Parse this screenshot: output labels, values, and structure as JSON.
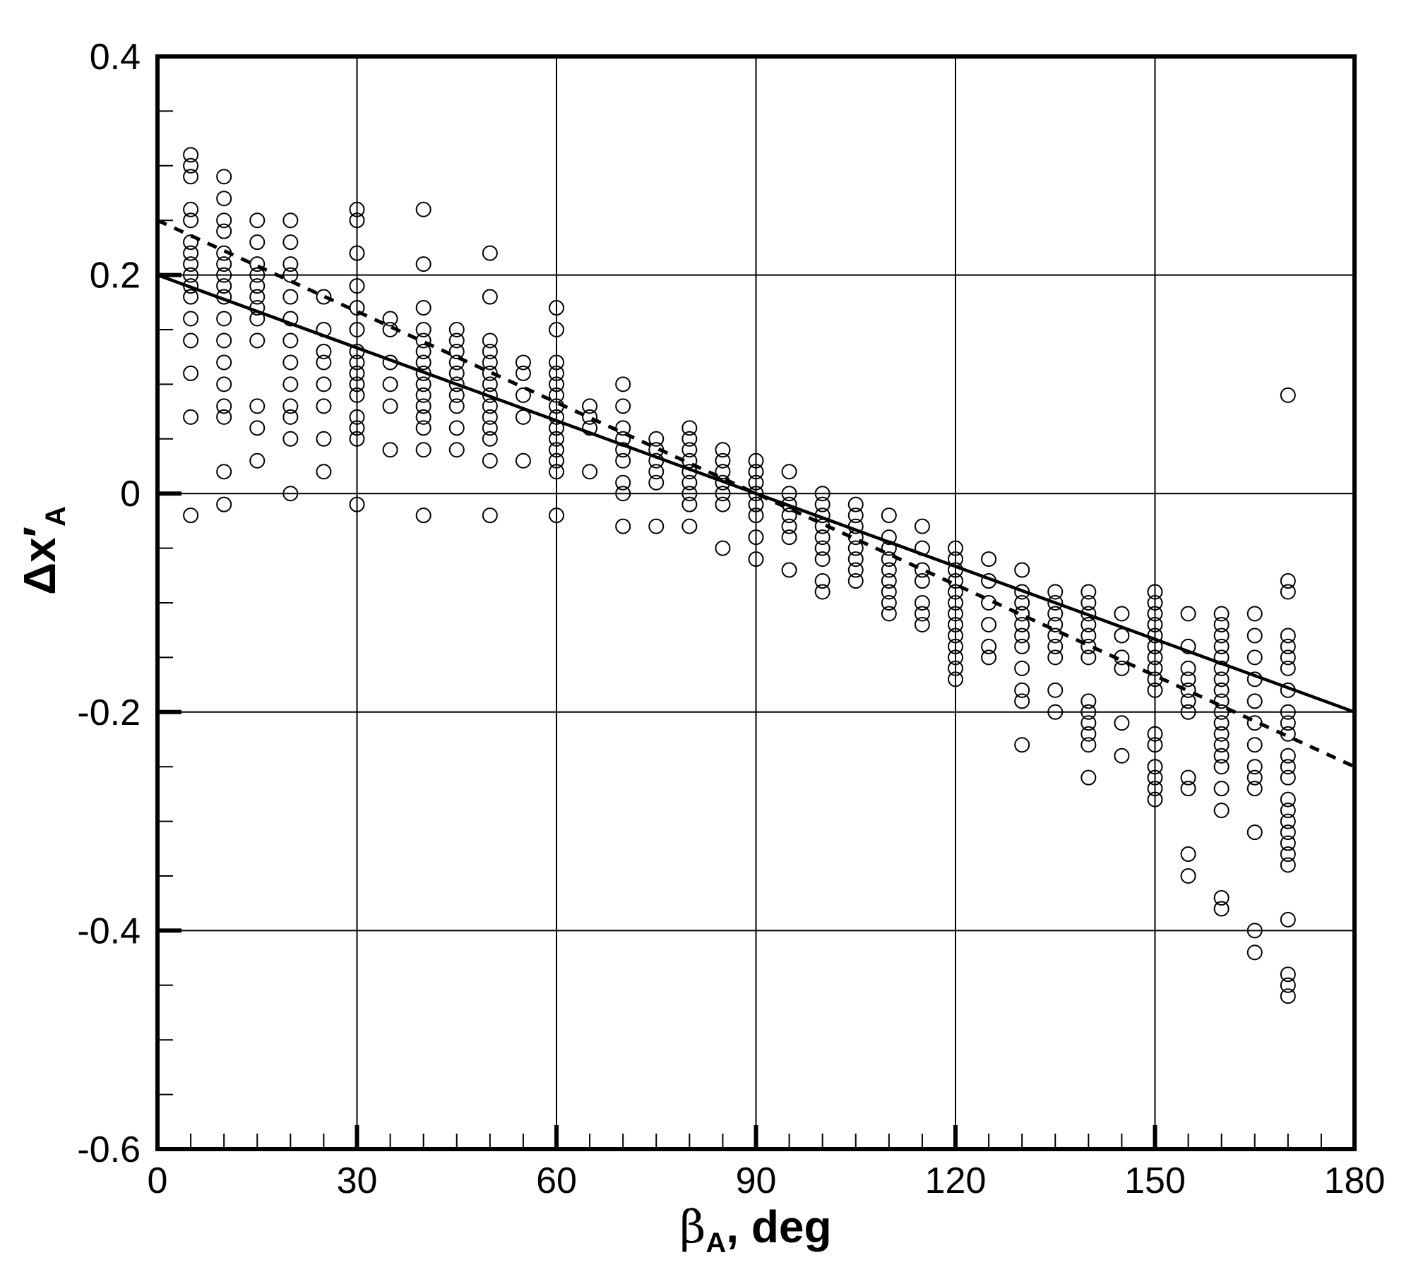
{
  "chart_data": {
    "type": "scatter",
    "title": "",
    "xlabel": {
      "symbol": "β",
      "subscript": "A",
      "suffix": ", deg"
    },
    "ylabel": {
      "prefix": "Δx′",
      "subscript": "A"
    },
    "xlim": [
      0,
      180
    ],
    "ylim": [
      -0.6,
      0.4
    ],
    "xticks": [
      0,
      30,
      60,
      90,
      120,
      150,
      180
    ],
    "xtick_labels": [
      "0",
      "30",
      "60",
      "90",
      "120",
      "150",
      "180"
    ],
    "yticks": [
      -0.6,
      -0.4,
      -0.2,
      0,
      0.2,
      0.4
    ],
    "ytick_labels": [
      "-0.6",
      "-0.4",
      "-0.2",
      "0",
      "0.2",
      "0.4"
    ],
    "grid": true,
    "lines": [
      {
        "style": "solid",
        "x": [
          0,
          180
        ],
        "y": [
          0.2,
          -0.2
        ]
      },
      {
        "style": "dashed",
        "x": [
          0,
          180
        ],
        "y": [
          0.25,
          -0.25
        ]
      }
    ],
    "points": [
      [
        5,
        0.31
      ],
      [
        5,
        0.3
      ],
      [
        5,
        0.29
      ],
      [
        5,
        0.26
      ],
      [
        5,
        0.25
      ],
      [
        5,
        0.23
      ],
      [
        5,
        0.22
      ],
      [
        5,
        0.21
      ],
      [
        5,
        0.2
      ],
      [
        5,
        0.19
      ],
      [
        5,
        0.18
      ],
      [
        5,
        0.16
      ],
      [
        5,
        0.14
      ],
      [
        5,
        0.11
      ],
      [
        5,
        0.07
      ],
      [
        5,
        -0.02
      ],
      [
        10,
        0.29
      ],
      [
        10,
        0.27
      ],
      [
        10,
        0.25
      ],
      [
        10,
        0.24
      ],
      [
        10,
        0.22
      ],
      [
        10,
        0.21
      ],
      [
        10,
        0.2
      ],
      [
        10,
        0.19
      ],
      [
        10,
        0.18
      ],
      [
        10,
        0.16
      ],
      [
        10,
        0.14
      ],
      [
        10,
        0.12
      ],
      [
        10,
        0.1
      ],
      [
        10,
        0.08
      ],
      [
        10,
        0.07
      ],
      [
        10,
        0.02
      ],
      [
        10,
        -0.01
      ],
      [
        15,
        0.25
      ],
      [
        15,
        0.23
      ],
      [
        15,
        0.21
      ],
      [
        15,
        0.2
      ],
      [
        15,
        0.19
      ],
      [
        15,
        0.18
      ],
      [
        15,
        0.17
      ],
      [
        15,
        0.16
      ],
      [
        15,
        0.14
      ],
      [
        15,
        0.08
      ],
      [
        15,
        0.06
      ],
      [
        15,
        0.03
      ],
      [
        20,
        0.25
      ],
      [
        20,
        0.23
      ],
      [
        20,
        0.21
      ],
      [
        20,
        0.2
      ],
      [
        20,
        0.18
      ],
      [
        20,
        0.16
      ],
      [
        20,
        0.14
      ],
      [
        20,
        0.12
      ],
      [
        20,
        0.1
      ],
      [
        20,
        0.08
      ],
      [
        20,
        0.07
      ],
      [
        20,
        0.05
      ],
      [
        20,
        0.0
      ],
      [
        25,
        0.18
      ],
      [
        25,
        0.15
      ],
      [
        25,
        0.13
      ],
      [
        25,
        0.12
      ],
      [
        25,
        0.1
      ],
      [
        25,
        0.08
      ],
      [
        25,
        0.05
      ],
      [
        25,
        0.02
      ],
      [
        30,
        0.26
      ],
      [
        30,
        0.25
      ],
      [
        30,
        0.22
      ],
      [
        30,
        0.19
      ],
      [
        30,
        0.17
      ],
      [
        30,
        0.15
      ],
      [
        30,
        0.13
      ],
      [
        30,
        0.12
      ],
      [
        30,
        0.11
      ],
      [
        30,
        0.1
      ],
      [
        30,
        0.09
      ],
      [
        30,
        0.07
      ],
      [
        30,
        0.06
      ],
      [
        30,
        0.05
      ],
      [
        30,
        -0.01
      ],
      [
        35,
        0.16
      ],
      [
        35,
        0.15
      ],
      [
        35,
        0.12
      ],
      [
        35,
        0.1
      ],
      [
        35,
        0.08
      ],
      [
        35,
        0.04
      ],
      [
        40,
        0.26
      ],
      [
        40,
        0.21
      ],
      [
        40,
        0.17
      ],
      [
        40,
        0.15
      ],
      [
        40,
        0.14
      ],
      [
        40,
        0.13
      ],
      [
        40,
        0.12
      ],
      [
        40,
        0.11
      ],
      [
        40,
        0.1
      ],
      [
        40,
        0.09
      ],
      [
        40,
        0.08
      ],
      [
        40,
        0.07
      ],
      [
        40,
        0.06
      ],
      [
        40,
        0.04
      ],
      [
        40,
        -0.02
      ],
      [
        45,
        0.15
      ],
      [
        45,
        0.14
      ],
      [
        45,
        0.13
      ],
      [
        45,
        0.12
      ],
      [
        45,
        0.11
      ],
      [
        45,
        0.1
      ],
      [
        45,
        0.09
      ],
      [
        45,
        0.08
      ],
      [
        45,
        0.06
      ],
      [
        45,
        0.04
      ],
      [
        50,
        0.22
      ],
      [
        50,
        0.18
      ],
      [
        50,
        0.14
      ],
      [
        50,
        0.13
      ],
      [
        50,
        0.12
      ],
      [
        50,
        0.11
      ],
      [
        50,
        0.1
      ],
      [
        50,
        0.09
      ],
      [
        50,
        0.08
      ],
      [
        50,
        0.07
      ],
      [
        50,
        0.06
      ],
      [
        50,
        0.05
      ],
      [
        50,
        0.03
      ],
      [
        50,
        -0.02
      ],
      [
        55,
        0.12
      ],
      [
        55,
        0.11
      ],
      [
        55,
        0.09
      ],
      [
        55,
        0.07
      ],
      [
        55,
        0.03
      ],
      [
        60,
        0.17
      ],
      [
        60,
        0.15
      ],
      [
        60,
        0.12
      ],
      [
        60,
        0.11
      ],
      [
        60,
        0.1
      ],
      [
        60,
        0.09
      ],
      [
        60,
        0.08
      ],
      [
        60,
        0.07
      ],
      [
        60,
        0.06
      ],
      [
        60,
        0.05
      ],
      [
        60,
        0.04
      ],
      [
        60,
        0.03
      ],
      [
        60,
        0.02
      ],
      [
        60,
        -0.02
      ],
      [
        65,
        0.08
      ],
      [
        65,
        0.07
      ],
      [
        65,
        0.06
      ],
      [
        65,
        0.02
      ],
      [
        70,
        0.1
      ],
      [
        70,
        0.08
      ],
      [
        70,
        0.06
      ],
      [
        70,
        0.05
      ],
      [
        70,
        0.04
      ],
      [
        70,
        0.03
      ],
      [
        70,
        0.01
      ],
      [
        70,
        0.0
      ],
      [
        70,
        -0.03
      ],
      [
        75,
        0.05
      ],
      [
        75,
        0.04
      ],
      [
        75,
        0.03
      ],
      [
        75,
        0.02
      ],
      [
        75,
        0.01
      ],
      [
        75,
        -0.03
      ],
      [
        80,
        0.06
      ],
      [
        80,
        0.05
      ],
      [
        80,
        0.04
      ],
      [
        80,
        0.03
      ],
      [
        80,
        0.02
      ],
      [
        80,
        0.01
      ],
      [
        80,
        0.0
      ],
      [
        80,
        -0.01
      ],
      [
        80,
        -0.03
      ],
      [
        85,
        0.04
      ],
      [
        85,
        0.03
      ],
      [
        85,
        0.02
      ],
      [
        85,
        0.01
      ],
      [
        85,
        0.0
      ],
      [
        85,
        -0.01
      ],
      [
        85,
        -0.05
      ],
      [
        90,
        0.03
      ],
      [
        90,
        0.02
      ],
      [
        90,
        0.01
      ],
      [
        90,
        0.0
      ],
      [
        90,
        -0.01
      ],
      [
        90,
        -0.02
      ],
      [
        90,
        -0.04
      ],
      [
        90,
        -0.06
      ],
      [
        95,
        0.02
      ],
      [
        95,
        0.0
      ],
      [
        95,
        -0.01
      ],
      [
        95,
        -0.02
      ],
      [
        95,
        -0.03
      ],
      [
        95,
        -0.04
      ],
      [
        95,
        -0.07
      ],
      [
        100,
        0.0
      ],
      [
        100,
        -0.01
      ],
      [
        100,
        -0.02
      ],
      [
        100,
        -0.03
      ],
      [
        100,
        -0.04
      ],
      [
        100,
        -0.05
      ],
      [
        100,
        -0.06
      ],
      [
        100,
        -0.08
      ],
      [
        100,
        -0.09
      ],
      [
        105,
        -0.01
      ],
      [
        105,
        -0.02
      ],
      [
        105,
        -0.03
      ],
      [
        105,
        -0.04
      ],
      [
        105,
        -0.05
      ],
      [
        105,
        -0.06
      ],
      [
        105,
        -0.07
      ],
      [
        105,
        -0.08
      ],
      [
        110,
        -0.02
      ],
      [
        110,
        -0.04
      ],
      [
        110,
        -0.05
      ],
      [
        110,
        -0.06
      ],
      [
        110,
        -0.07
      ],
      [
        110,
        -0.08
      ],
      [
        110,
        -0.09
      ],
      [
        110,
        -0.1
      ],
      [
        110,
        -0.11
      ],
      [
        115,
        -0.03
      ],
      [
        115,
        -0.05
      ],
      [
        115,
        -0.07
      ],
      [
        115,
        -0.08
      ],
      [
        115,
        -0.1
      ],
      [
        115,
        -0.11
      ],
      [
        115,
        -0.12
      ],
      [
        120,
        -0.05
      ],
      [
        120,
        -0.06
      ],
      [
        120,
        -0.07
      ],
      [
        120,
        -0.08
      ],
      [
        120,
        -0.09
      ],
      [
        120,
        -0.1
      ],
      [
        120,
        -0.11
      ],
      [
        120,
        -0.12
      ],
      [
        120,
        -0.13
      ],
      [
        120,
        -0.14
      ],
      [
        120,
        -0.15
      ],
      [
        120,
        -0.16
      ],
      [
        120,
        -0.17
      ],
      [
        125,
        -0.06
      ],
      [
        125,
        -0.08
      ],
      [
        125,
        -0.1
      ],
      [
        125,
        -0.12
      ],
      [
        125,
        -0.14
      ],
      [
        125,
        -0.15
      ],
      [
        130,
        -0.07
      ],
      [
        130,
        -0.09
      ],
      [
        130,
        -0.1
      ],
      [
        130,
        -0.11
      ],
      [
        130,
        -0.12
      ],
      [
        130,
        -0.13
      ],
      [
        130,
        -0.14
      ],
      [
        130,
        -0.16
      ],
      [
        130,
        -0.18
      ],
      [
        130,
        -0.19
      ],
      [
        130,
        -0.23
      ],
      [
        135,
        -0.09
      ],
      [
        135,
        -0.1
      ],
      [
        135,
        -0.11
      ],
      [
        135,
        -0.12
      ],
      [
        135,
        -0.13
      ],
      [
        135,
        -0.14
      ],
      [
        135,
        -0.15
      ],
      [
        135,
        -0.18
      ],
      [
        135,
        -0.2
      ],
      [
        140,
        -0.09
      ],
      [
        140,
        -0.1
      ],
      [
        140,
        -0.11
      ],
      [
        140,
        -0.12
      ],
      [
        140,
        -0.13
      ],
      [
        140,
        -0.14
      ],
      [
        140,
        -0.15
      ],
      [
        140,
        -0.19
      ],
      [
        140,
        -0.2
      ],
      [
        140,
        -0.21
      ],
      [
        140,
        -0.22
      ],
      [
        140,
        -0.23
      ],
      [
        140,
        -0.26
      ],
      [
        145,
        -0.11
      ],
      [
        145,
        -0.13
      ],
      [
        145,
        -0.15
      ],
      [
        145,
        -0.16
      ],
      [
        145,
        -0.21
      ],
      [
        145,
        -0.24
      ],
      [
        150,
        -0.09
      ],
      [
        150,
        -0.1
      ],
      [
        150,
        -0.11
      ],
      [
        150,
        -0.12
      ],
      [
        150,
        -0.13
      ],
      [
        150,
        -0.14
      ],
      [
        150,
        -0.15
      ],
      [
        150,
        -0.16
      ],
      [
        150,
        -0.17
      ],
      [
        150,
        -0.18
      ],
      [
        150,
        -0.22
      ],
      [
        150,
        -0.23
      ],
      [
        150,
        -0.25
      ],
      [
        150,
        -0.26
      ],
      [
        150,
        -0.27
      ],
      [
        150,
        -0.28
      ],
      [
        155,
        -0.11
      ],
      [
        155,
        -0.14
      ],
      [
        155,
        -0.16
      ],
      [
        155,
        -0.17
      ],
      [
        155,
        -0.18
      ],
      [
        155,
        -0.19
      ],
      [
        155,
        -0.2
      ],
      [
        155,
        -0.26
      ],
      [
        155,
        -0.27
      ],
      [
        155,
        -0.33
      ],
      [
        155,
        -0.35
      ],
      [
        160,
        -0.11
      ],
      [
        160,
        -0.12
      ],
      [
        160,
        -0.13
      ],
      [
        160,
        -0.14
      ],
      [
        160,
        -0.15
      ],
      [
        160,
        -0.16
      ],
      [
        160,
        -0.17
      ],
      [
        160,
        -0.18
      ],
      [
        160,
        -0.19
      ],
      [
        160,
        -0.2
      ],
      [
        160,
        -0.21
      ],
      [
        160,
        -0.22
      ],
      [
        160,
        -0.23
      ],
      [
        160,
        -0.24
      ],
      [
        160,
        -0.25
      ],
      [
        160,
        -0.27
      ],
      [
        160,
        -0.29
      ],
      [
        160,
        -0.37
      ],
      [
        160,
        -0.38
      ],
      [
        165,
        -0.11
      ],
      [
        165,
        -0.13
      ],
      [
        165,
        -0.15
      ],
      [
        165,
        -0.17
      ],
      [
        165,
        -0.19
      ],
      [
        165,
        -0.21
      ],
      [
        165,
        -0.23
      ],
      [
        165,
        -0.25
      ],
      [
        165,
        -0.26
      ],
      [
        165,
        -0.27
      ],
      [
        165,
        -0.31
      ],
      [
        165,
        -0.4
      ],
      [
        165,
        -0.42
      ],
      [
        170,
        0.09
      ],
      [
        170,
        -0.08
      ],
      [
        170,
        -0.09
      ],
      [
        170,
        -0.13
      ],
      [
        170,
        -0.14
      ],
      [
        170,
        -0.15
      ],
      [
        170,
        -0.16
      ],
      [
        170,
        -0.18
      ],
      [
        170,
        -0.2
      ],
      [
        170,
        -0.21
      ],
      [
        170,
        -0.22
      ],
      [
        170,
        -0.24
      ],
      [
        170,
        -0.25
      ],
      [
        170,
        -0.26
      ],
      [
        170,
        -0.28
      ],
      [
        170,
        -0.29
      ],
      [
        170,
        -0.3
      ],
      [
        170,
        -0.31
      ],
      [
        170,
        -0.32
      ],
      [
        170,
        -0.33
      ],
      [
        170,
        -0.34
      ],
      [
        170,
        -0.39
      ],
      [
        170,
        -0.44
      ],
      [
        170,
        -0.45
      ],
      [
        170,
        -0.46
      ]
    ]
  }
}
